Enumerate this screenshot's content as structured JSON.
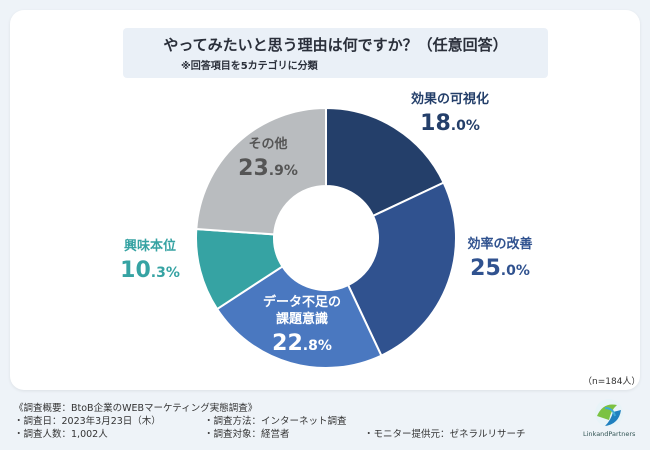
{
  "chart_data": {
    "type": "pie",
    "donut": true,
    "title": "やってみたいと思う理由は何ですか？（任意回答）",
    "subtitle": "※回答項目を5カテゴリに分類",
    "sample_label": "（n=184人）",
    "slices": [
      {
        "label": "効果の可視化",
        "label_lines": [
          "効果の可視化"
        ],
        "value": 18.0,
        "int": "18",
        "dec": ".0%",
        "color": "#243f6a",
        "label_color": "#243f6a"
      },
      {
        "label": "効率の改善",
        "label_lines": [
          "効率の改善"
        ],
        "value": 25.0,
        "int": "25",
        "dec": ".0%",
        "color": "#30528f",
        "label_color": "#30528f"
      },
      {
        "label": "データ不足の課題意識",
        "label_lines": [
          "データ不足の",
          "課題意識"
        ],
        "value": 22.8,
        "int": "22",
        "dec": ".8%",
        "color": "#4a78c0",
        "label_color": "#ffffff"
      },
      {
        "label": "興味本位",
        "label_lines": [
          "興味本位"
        ],
        "value": 10.3,
        "int": "10",
        "dec": ".3%",
        "color": "#36a3a3",
        "label_color": "#36a3a3"
      },
      {
        "label": "その他",
        "label_lines": [
          "その他"
        ],
        "value": 23.9,
        "int": "23",
        "dec": ".9%",
        "color": "#b9bcbf",
        "label_color": "#555555"
      }
    ]
  },
  "footer": {
    "overview": "《調査概要：BtoB企業のWEBマーケティング実態調査》",
    "date": "・調査日：2023年3月23日（木）",
    "method": "・調査方法：インターネット調査",
    "count": "・調査人数：1,002人",
    "target": "・調査対象：経営者",
    "provider": "・モニター提供元：ゼネラルリサーチ"
  },
  "logo": {
    "text": "LinkandPartners",
    "icon": "link-and-partners-logo"
  }
}
